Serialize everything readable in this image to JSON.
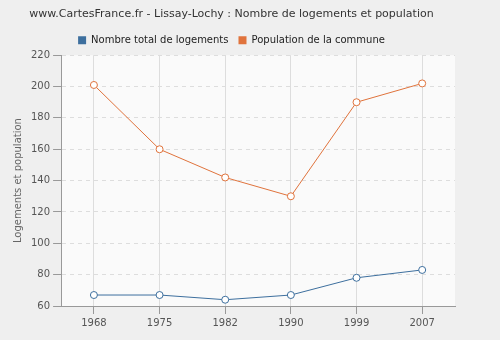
{
  "chart_data": {
    "type": "line",
    "title": "www.CartesFrance.fr - Lissay-Lochy : Nombre de logements et population",
    "y_label": "Logements et population",
    "categories": [
      "1968",
      "1975",
      "1982",
      "1990",
      "1999",
      "2007"
    ],
    "series": [
      {
        "name": "Nombre total de logements",
        "color": "#3d6f9e",
        "values": [
          67,
          67,
          64,
          67,
          78,
          83
        ]
      },
      {
        "name": "Population de la commune",
        "color": "#e0733c",
        "values": [
          201,
          160,
          142,
          130,
          190,
          202
        ]
      }
    ],
    "ylim": [
      60,
      220
    ],
    "yticks": [
      60,
      80,
      100,
      120,
      140,
      160,
      180,
      200,
      220
    ],
    "grid": true,
    "legend": "top",
    "marker": "circle",
    "line_style": "solid"
  }
}
